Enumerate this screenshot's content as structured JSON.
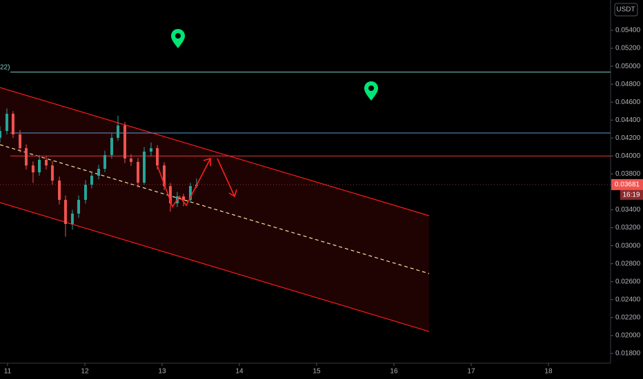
{
  "chart_data": {
    "type": "candlestick",
    "axis_title": "USDT",
    "legend_fragment": "22)",
    "x": [
      10.902,
      10.991,
      11.071,
      11.161,
      11.241,
      11.33,
      11.411,
      11.5,
      11.58,
      11.67,
      11.75,
      11.839,
      11.92,
      12.009,
      12.089,
      12.179,
      12.259,
      12.348,
      12.429,
      12.518,
      12.598,
      12.688,
      12.768,
      12.857,
      12.938,
      13.027,
      13.107,
      13.196,
      13.277,
      13.366,
      13.446
    ],
    "open": [
      0.04202,
      0.04279,
      0.04471,
      0.04241,
      0.04087,
      0.03895,
      0.03818,
      0.03957,
      0.03895,
      0.03726,
      0.03511,
      0.03243,
      0.03358,
      0.03511,
      0.0368,
      0.0378,
      0.03857,
      0.0401,
      0.04202,
      0.0434,
      0.03972,
      0.03934,
      0.03703,
      0.04049,
      0.04087,
      0.03895,
      0.03665,
      0.03473,
      0.0355,
      0.03511,
      0.03665
    ],
    "high": [
      0.0433,
      0.0453,
      0.045,
      0.0429,
      0.0413,
      0.0394,
      0.0401,
      0.04,
      0.0394,
      0.0377,
      0.0356,
      0.034,
      0.0356,
      0.0373,
      0.0383,
      0.039,
      0.0406,
      0.0425,
      0.0445,
      0.0438,
      0.0402,
      0.0398,
      0.041,
      0.0415,
      0.0412,
      0.0393,
      0.037,
      0.036,
      0.0358,
      0.037,
      0.0375
    ],
    "low": [
      0.0415,
      0.0424,
      0.042,
      0.0404,
      0.0385,
      0.037,
      0.0378,
      0.0385,
      0.0368,
      0.0346,
      0.031,
      0.0318,
      0.0331,
      0.0347,
      0.0364,
      0.0374,
      0.0382,
      0.0397,
      0.0417,
      0.0392,
      0.0389,
      0.0365,
      0.0368,
      0.04,
      0.0385,
      0.0362,
      0.0338,
      0.0343,
      0.0344,
      0.0348,
      0.0364
    ],
    "close": [
      0.04279,
      0.04471,
      0.04241,
      0.04087,
      0.03895,
      0.03818,
      0.03957,
      0.03895,
      0.03726,
      0.03511,
      0.03243,
      0.03358,
      0.03511,
      0.0368,
      0.0378,
      0.03857,
      0.0401,
      0.04202,
      0.0434,
      0.03972,
      0.03934,
      0.03703,
      0.04049,
      0.04087,
      0.03895,
      0.03665,
      0.03473,
      0.0355,
      0.03511,
      0.03665,
      0.03681
    ],
    "up_color": "#26a69a",
    "down_color": "#ef5350",
    "xlim": [
      10.902,
      18.804
    ],
    "xticks": [
      11,
      12,
      13,
      14,
      15,
      16,
      17,
      18
    ],
    "ylim": [
      0.01692,
      0.05738
    ],
    "yticks": [
      {
        "value": 0.054,
        "label": "0.05400"
      },
      {
        "value": 0.052,
        "label": "0.05200"
      },
      {
        "value": 0.05,
        "label": "0.05000"
      },
      {
        "value": 0.048,
        "label": "0.04800"
      },
      {
        "value": 0.046,
        "label": "0.04600"
      },
      {
        "value": 0.044,
        "label": "0.04400"
      },
      {
        "value": 0.042,
        "label": "0.04200"
      },
      {
        "value": 0.04,
        "label": "0.04000"
      },
      {
        "value": 0.038,
        "label": "0.03800"
      },
      {
        "value": 0.034,
        "label": "0.03400"
      },
      {
        "value": 0.032,
        "label": "0.03200"
      },
      {
        "value": 0.03,
        "label": "0.03000"
      },
      {
        "value": 0.028,
        "label": "0.02800"
      },
      {
        "value": 0.026,
        "label": "0.02600"
      },
      {
        "value": 0.024,
        "label": "0.02400"
      },
      {
        "value": 0.022,
        "label": "0.02200"
      },
      {
        "value": 0.02,
        "label": "0.02000"
      },
      {
        "value": 0.018,
        "label": "0.01800"
      }
    ],
    "levels": [
      {
        "value": 0.04935,
        "color": "#80cbc4"
      },
      {
        "value": 0.04256,
        "color": "#5b9bd5"
      },
      {
        "value": 0.04,
        "color": "#e53935"
      }
    ],
    "last_price": {
      "value": 0.03681,
      "countdown": "16:19",
      "color": "#ef5350"
    },
    "channel": {
      "x": [
        10.902,
        16.455
      ],
      "upper": [
        0.04763,
        0.03335
      ],
      "middle": [
        0.04126,
        0.0269
      ],
      "lower": [
        0.03481,
        0.02045
      ],
      "color": "#ff1a1a",
      "mid_color": "#f5e6a0"
    }
  }
}
